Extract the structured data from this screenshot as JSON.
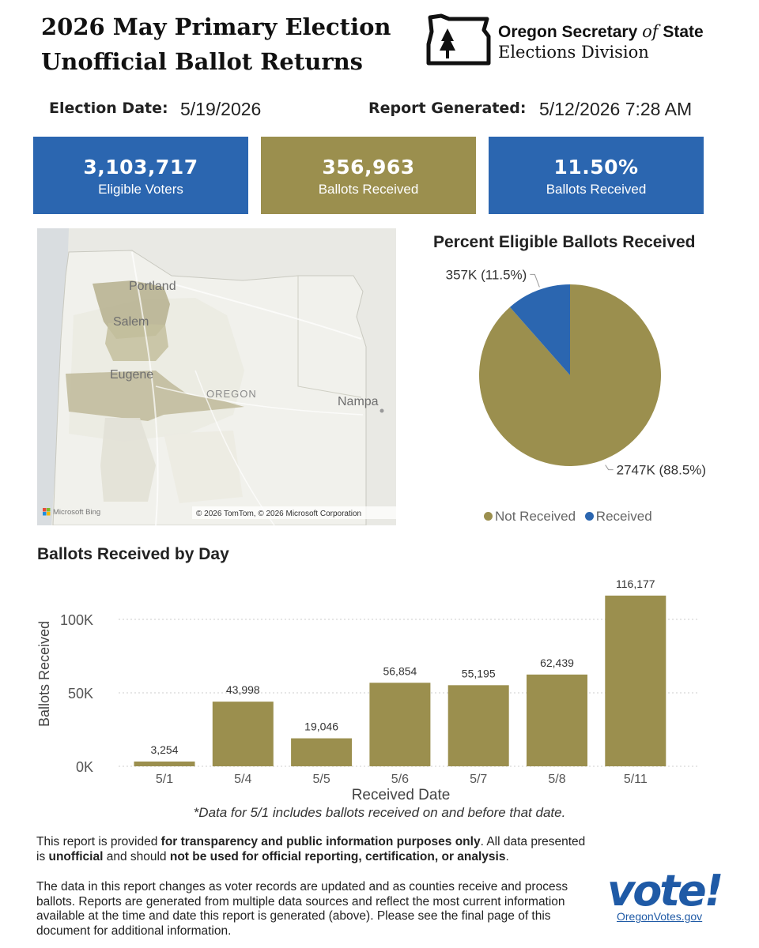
{
  "header": {
    "title_line1": "2026 May Primary Election",
    "title_line2": "Unofficial Ballot Returns",
    "org_name_part1": "Oregon Secretary ",
    "org_name_of": "of",
    "org_name_part2": " State",
    "org_division": "Elections Division"
  },
  "meta": {
    "election_date_label": "Election Date:",
    "election_date_value": "5/19/2026",
    "report_generated_label": "Report Generated:",
    "report_generated_value": "5/12/2026 7:28 AM"
  },
  "kpis": [
    {
      "value": "3,103,717",
      "label": "Eligible Voters",
      "color": "#2b66b0"
    },
    {
      "value": "356,963",
      "label": "Ballots Received",
      "color": "#9b8f4e"
    },
    {
      "value": "11.50%",
      "label": "Ballots Received",
      "color": "#2b66b0"
    }
  ],
  "map": {
    "cities": [
      "Portland",
      "Salem",
      "Eugene",
      "Nampa"
    ],
    "state_label": "OREGON",
    "provider": "Microsoft Bing",
    "copyright": "© 2026 TomTom, © 2026 Microsoft Corporation"
  },
  "colors": {
    "not_received": "#9b8f4e",
    "received": "#2b66b0",
    "bar": "#9b8f4e"
  },
  "chart_data": [
    {
      "type": "pie",
      "title": "Percent Eligible Ballots Received",
      "slices": [
        {
          "name": "Not Received",
          "value": 2747,
          "label": "2747K (88.5%)",
          "percent": 88.5
        },
        {
          "name": "Received",
          "value": 357,
          "label": "357K (11.5%)",
          "percent": 11.5
        }
      ],
      "legend": [
        "Not Received",
        "Received"
      ],
      "legend_position": "bottom"
    },
    {
      "type": "bar",
      "title": "Ballots Received by Day",
      "categories": [
        "5/1",
        "5/4",
        "5/5",
        "5/6",
        "5/7",
        "5/8",
        "5/11"
      ],
      "values": [
        3254,
        43998,
        19046,
        56854,
        55195,
        62439,
        116177
      ],
      "value_labels": [
        "3,254",
        "43,998",
        "19,046",
        "56,854",
        "55,195",
        "62,439",
        "116,177"
      ],
      "xlabel": "Received Date",
      "ylabel": "Ballots Received",
      "ylim": [
        0,
        100000
      ],
      "yticks": [
        0,
        50000,
        100000
      ],
      "ytick_labels": [
        "0K",
        "50K",
        "100K"
      ],
      "grid": true
    }
  ],
  "footnote": "*Data for 5/1 includes ballots received on and before that date.",
  "disclaimer": {
    "p1_a": "This report is provided ",
    "p1_b": "for transparency and public information purposes only",
    "p1_c": ". All data presented is ",
    "p1_d": "unofficial",
    "p1_e": " and should ",
    "p1_f": "not be used for official reporting, certification, or analysis",
    "p1_g": ".",
    "p2": "The data in this report changes as voter records are updated and as counties receive and process ballots. Reports are generated from multiple data sources and reflect the most current information available at the time and date this report is generated (above). Please see the final page of this document for additional information."
  },
  "vote_logo": {
    "text": "vote!",
    "link": "OregonVotes.gov"
  }
}
